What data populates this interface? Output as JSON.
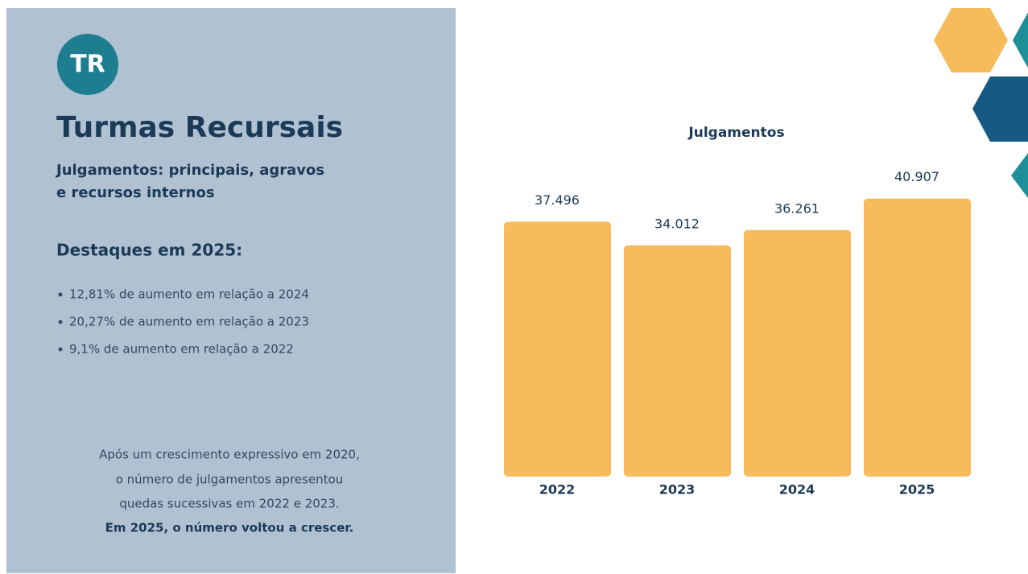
{
  "panel": {
    "badge": "TR",
    "title": "Turmas Recursais",
    "subtitle": [
      "Julgamentos: principais, agravos",
      "e recursos internos"
    ],
    "highlights_title": "Destaques em 2025:",
    "highlights": [
      "12,81% de aumento em relação a 2024",
      "20,27% de aumento em relação a 2023",
      "9,1% de aumento em relação a 2022"
    ],
    "note": [
      "Após um crescimento expressivo em 2020,",
      "o número de julgamentos apresentou",
      "quedas sucessivas em 2022 e 2023."
    ],
    "note_emphasis": "Em 2025, o número voltou a crescer."
  },
  "chart_data": {
    "type": "bar",
    "title": "Julgamentos",
    "categories": [
      "2022",
      "2023",
      "2024",
      "2025"
    ],
    "values": [
      37496,
      34012,
      36261,
      40907
    ],
    "value_labels": [
      "37.496",
      "34.012",
      "36.261",
      "40.907"
    ],
    "color": "#f6bb5b",
    "ylim": [
      0,
      45000
    ]
  }
}
